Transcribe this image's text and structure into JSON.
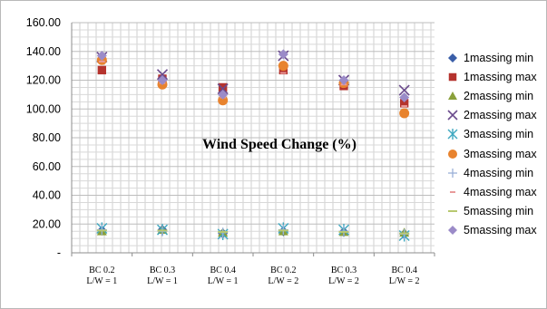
{
  "chart_data": {
    "type": "scatter",
    "title": "Wind Speed Change (%)",
    "xlabel": "",
    "ylabel": "",
    "ylim": [
      0,
      160
    ],
    "y_ticks": [
      "160.00",
      "140.00",
      "120.00",
      "100.00",
      "80.00",
      "60.00",
      "40.00",
      "20.00",
      "-"
    ],
    "categories": [
      [
        "BC 0.2",
        "L/W = 1"
      ],
      [
        "BC 0.3",
        "L/W = 1"
      ],
      [
        "BC 0.4",
        "L/W = 1"
      ],
      [
        "BC 0.2",
        "L/W = 2"
      ],
      [
        "BC 0.3",
        "L/W = 2"
      ],
      [
        "BC 0.4",
        "L/W = 2"
      ]
    ],
    "grid": true,
    "legend_position": "right",
    "series": [
      {
        "name": "1massing min",
        "marker": "diamond",
        "color": "#3a5ea8",
        "values": [
          15.5,
          16,
          13.5,
          15,
          14.5,
          13
        ]
      },
      {
        "name": "1massing max",
        "marker": "square",
        "color": "#b5332e",
        "values": [
          127,
          121,
          115,
          127,
          116,
          104
        ]
      },
      {
        "name": "2massing min",
        "marker": "triangle",
        "color": "#8aa03a",
        "values": [
          15,
          16,
          14,
          15,
          14.5,
          14
        ]
      },
      {
        "name": "2massing max",
        "marker": "x",
        "color": "#6a4a8c",
        "values": [
          136,
          124,
          114,
          137,
          120,
          113
        ]
      },
      {
        "name": "3massing min",
        "marker": "asterisk",
        "color": "#3fa8c0",
        "values": [
          17,
          16,
          13,
          17,
          16,
          12
        ]
      },
      {
        "name": "3massing max",
        "marker": "circle",
        "color": "#e8832e",
        "values": [
          134,
          117,
          106,
          130,
          118,
          97
        ]
      },
      {
        "name": "4massing min",
        "marker": "plus",
        "color": "#9ab0d8",
        "values": [
          16,
          15,
          14,
          16,
          15,
          13
        ]
      },
      {
        "name": "4massing max",
        "marker": "dash",
        "color": "#e89a9a",
        "values": [
          133,
          118,
          108,
          125,
          117,
          102
        ]
      },
      {
        "name": "5massing min",
        "marker": "line",
        "color": "#b8c870",
        "values": [
          15.5,
          15.5,
          14.5,
          15.5,
          14.5,
          13.5
        ]
      },
      {
        "name": "5massing max",
        "marker": "diamond",
        "color": "#9b8bc8",
        "values": [
          137,
          120,
          110,
          138,
          120,
          108
        ]
      }
    ]
  }
}
